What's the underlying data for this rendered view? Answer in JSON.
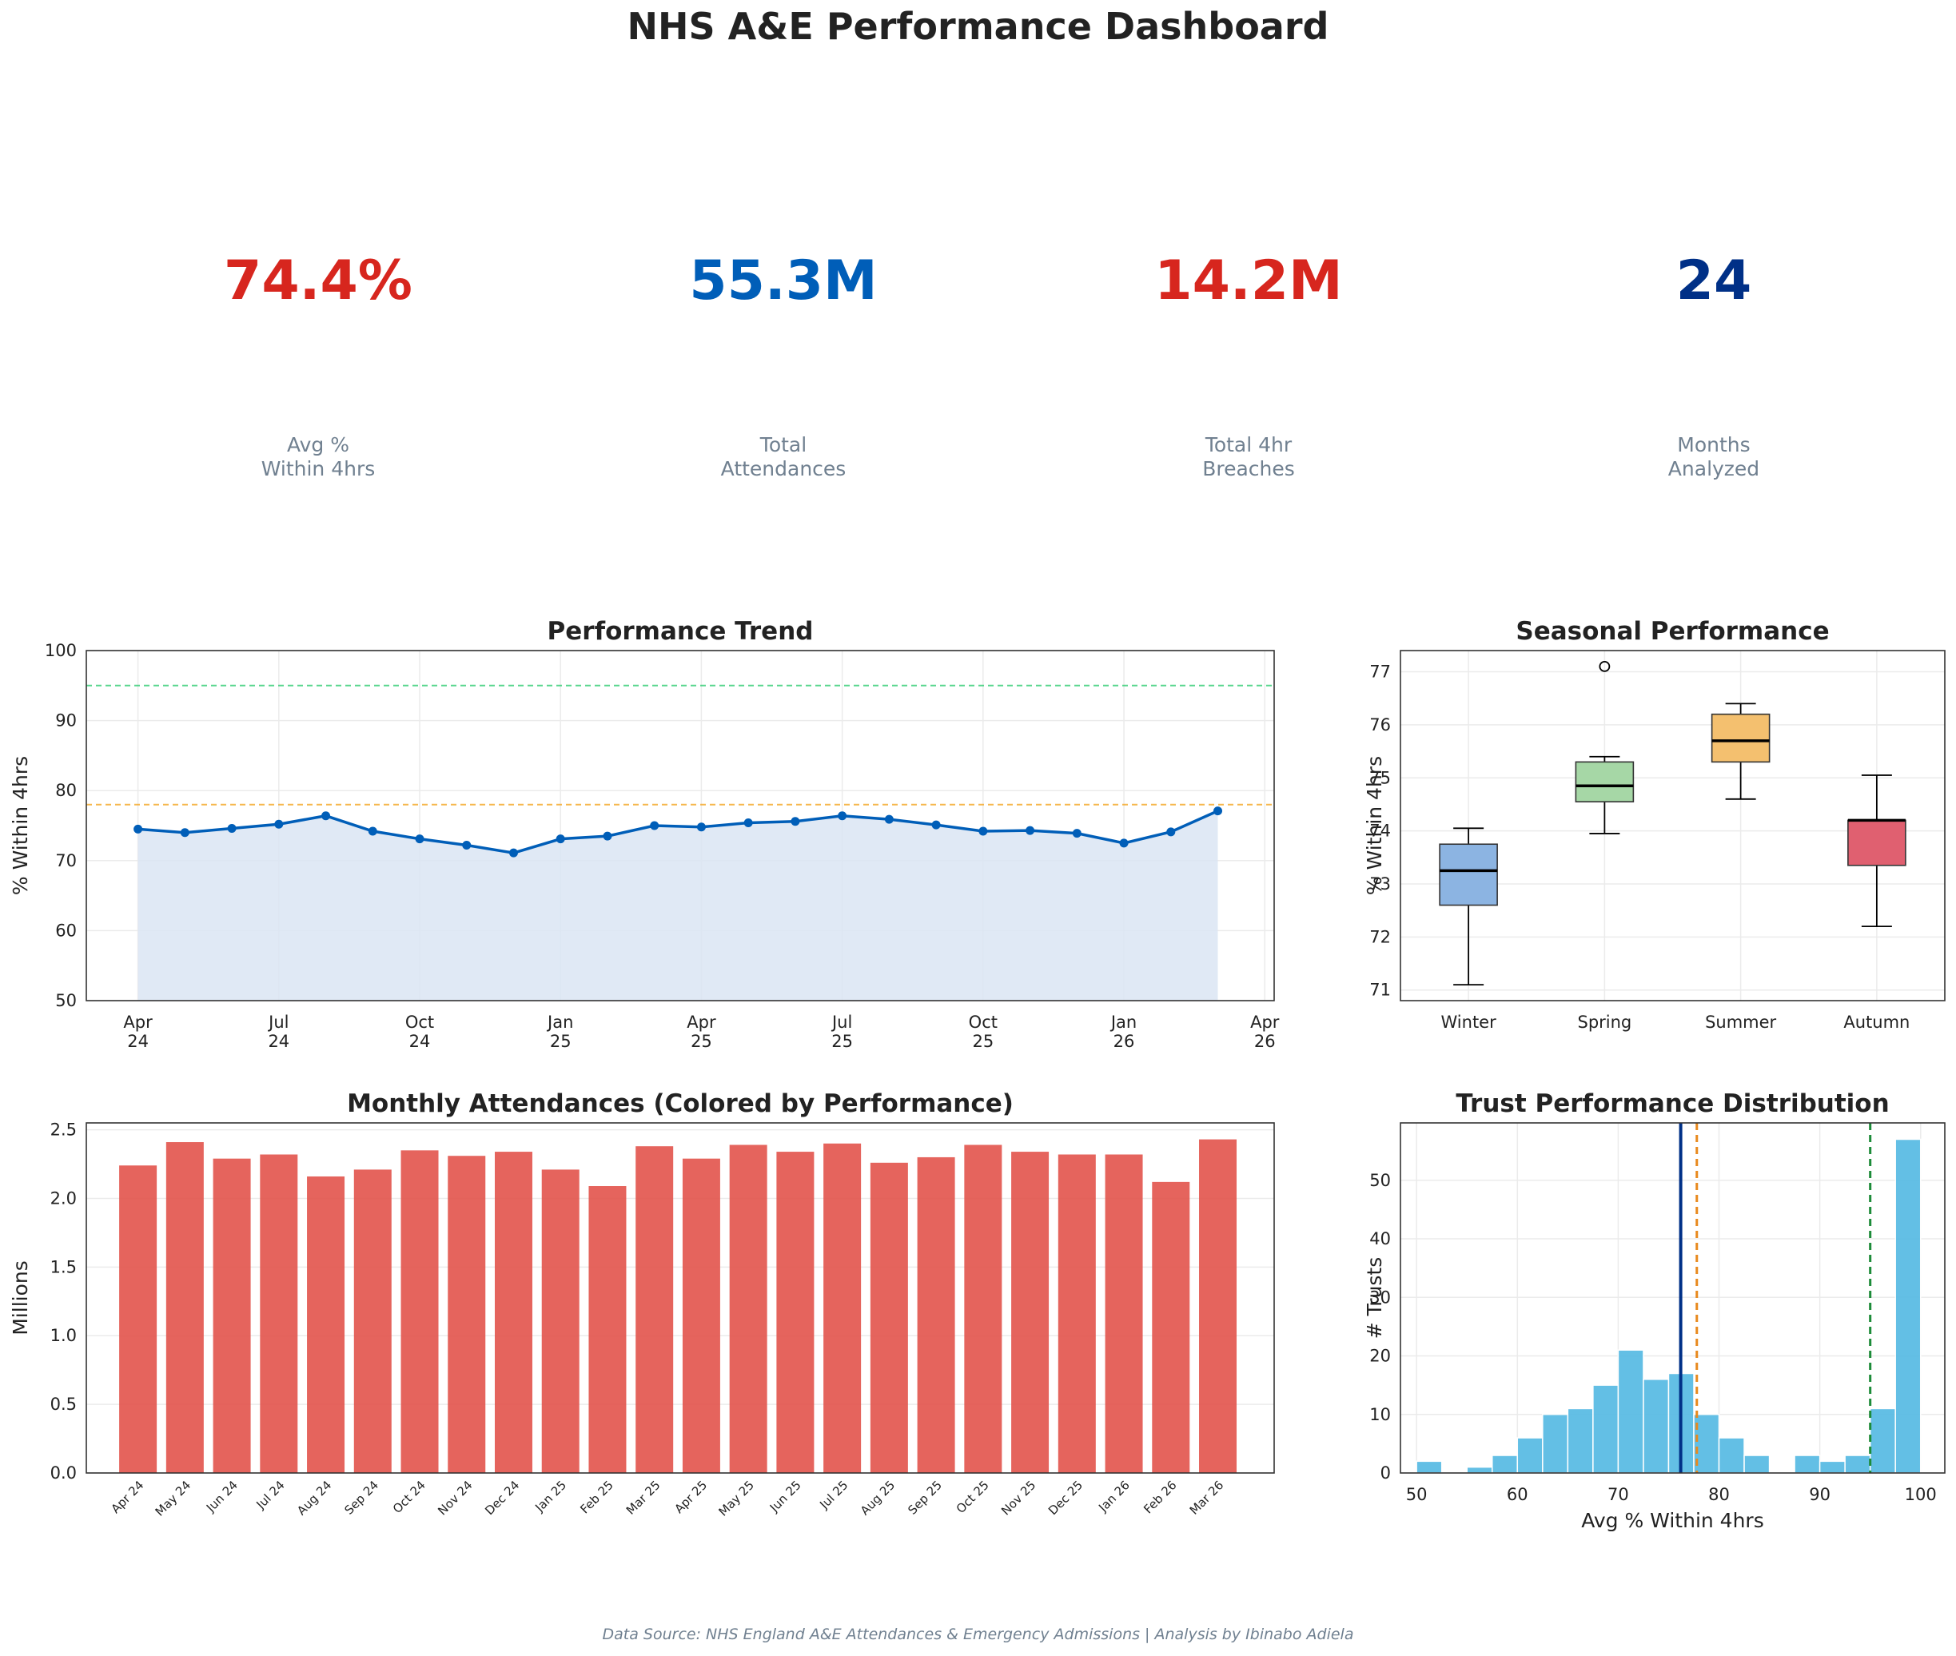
{
  "dashboard_title": "NHS A&E Performance Dashboard",
  "kpis": [
    {
      "value": "74.4%",
      "label": "Avg %\nWithin 4hrs",
      "color": "#d7261e"
    },
    {
      "value": "55.3M",
      "label": "Total\nAttendances",
      "color": "#005eb8"
    },
    {
      "value": "14.2M",
      "label": "Total 4hr\nBreaches",
      "color": "#d7261e"
    },
    {
      "value": "24",
      "label": "Months\nAnalyzed",
      "color": "#003087"
    }
  ],
  "footer": "Data Source: NHS England A&E Attendances & Emergency Admissions | Analysis by Ibinabo Adiela",
  "chart_data": [
    {
      "id": "trend",
      "type": "line",
      "title": "Performance Trend",
      "xlabel": "",
      "ylabel": "% Within 4hrs",
      "ylim": [
        50,
        100
      ],
      "yticks": [
        50,
        60,
        70,
        80,
        90,
        100
      ],
      "xticks": [
        "Apr\n24",
        "Jul\n24",
        "Oct\n24",
        "Jan\n25",
        "Apr\n25",
        "Jul\n25",
        "Oct\n25",
        "Jan\n26",
        "Apr\n26"
      ],
      "x": [
        "Apr 24",
        "May 24",
        "Jun 24",
        "Jul 24",
        "Aug 24",
        "Sep 24",
        "Oct 24",
        "Nov 24",
        "Dec 24",
        "Jan 25",
        "Feb 25",
        "Mar 25",
        "Apr 25",
        "May 25",
        "Jun 25",
        "Jul 25",
        "Aug 25",
        "Sep 25",
        "Oct 25",
        "Nov 25",
        "Dec 25",
        "Jan 26",
        "Feb 26",
        "Mar 26"
      ],
      "values": [
        74.5,
        74.0,
        74.6,
        75.2,
        76.4,
        74.2,
        73.1,
        72.2,
        71.1,
        73.1,
        73.5,
        75.0,
        74.8,
        75.4,
        75.6,
        76.4,
        75.9,
        75.1,
        74.2,
        74.3,
        73.9,
        72.5,
        74.1,
        77.1
      ],
      "reference_lines": [
        {
          "value": 95,
          "color": "#2ecc71"
        },
        {
          "value": 78,
          "color": "#f5a623"
        }
      ],
      "line_color": "#005eb8",
      "fill_color": "#dbe5f3",
      "grid": true
    },
    {
      "id": "seasonal",
      "type": "box",
      "title": "Seasonal Performance",
      "xlabel": "",
      "ylabel": "% Within 4hrs",
      "ylim": [
        70.8,
        77.4
      ],
      "yticks": [
        71,
        72,
        73,
        74,
        75,
        76,
        77
      ],
      "categories": [
        "Winter",
        "Spring",
        "Summer",
        "Autumn"
      ],
      "boxes": [
        {
          "whislo": 71.1,
          "q1": 72.6,
          "med": 73.25,
          "q3": 73.75,
          "whishi": 74.05,
          "fliers": [],
          "color": "#8cb4e2"
        },
        {
          "whislo": 73.95,
          "q1": 74.55,
          "med": 74.85,
          "q3": 75.3,
          "whishi": 75.4,
          "fliers": [
            77.1
          ],
          "color": "#a6d7a6"
        },
        {
          "whislo": 74.6,
          "q1": 75.3,
          "med": 75.7,
          "q3": 76.2,
          "whishi": 76.4,
          "fliers": [],
          "color": "#f4c06f"
        },
        {
          "whislo": 72.2,
          "q1": 73.35,
          "med": 74.2,
          "q3": 74.2,
          "whishi": 75.05,
          "fliers": [],
          "color": "#e06070"
        }
      ],
      "grid": true
    },
    {
      "id": "attendances",
      "type": "bar",
      "title": "Monthly Attendances (Colored by Performance)",
      "xlabel": "",
      "ylabel": "Millions",
      "ylim": [
        0,
        2.55
      ],
      "yticks": [
        0.0,
        0.5,
        1.0,
        1.5,
        2.0,
        2.5
      ],
      "ytick_labels": [
        "0.0",
        "0.5",
        "1.0",
        "1.5",
        "2.0",
        "2.5"
      ],
      "categories": [
        "Apr 24",
        "May 24",
        "Jun 24",
        "Jul 24",
        "Aug 24",
        "Sep 24",
        "Oct 24",
        "Nov 24",
        "Dec 24",
        "Jan 25",
        "Feb 25",
        "Mar 25",
        "Apr 25",
        "May 25",
        "Jun 25",
        "Jul 25",
        "Aug 25",
        "Sep 25",
        "Oct 25",
        "Nov 25",
        "Dec 25",
        "Jan 26",
        "Feb 26",
        "Mar 26"
      ],
      "values": [
        2.24,
        2.41,
        2.29,
        2.32,
        2.16,
        2.21,
        2.35,
        2.31,
        2.34,
        2.21,
        2.09,
        2.38,
        2.29,
        2.39,
        2.34,
        2.4,
        2.26,
        2.3,
        2.39,
        2.34,
        2.32,
        2.32,
        2.12,
        2.43
      ],
      "bar_color": "#e2534b",
      "grid": true
    },
    {
      "id": "distribution",
      "type": "histogram",
      "title": "Trust Performance Distribution",
      "xlabel": "Avg % Within 4hrs",
      "ylabel": "# Trusts",
      "xlim": [
        48.4,
        102.4
      ],
      "ylim": [
        0,
        59.8
      ],
      "xticks": [
        50,
        60,
        70,
        80,
        90,
        100
      ],
      "yticks": [
        0,
        10,
        20,
        30,
        40,
        50
      ],
      "bin_start": 50,
      "bin_width": 2.5,
      "counts": [
        2,
        0,
        1,
        3,
        6,
        10,
        11,
        15,
        21,
        16,
        17,
        10,
        6,
        3,
        0,
        3,
        2,
        3,
        11,
        57
      ],
      "bar_color": "#5bbce4",
      "vlines": [
        {
          "value": 76.2,
          "color": "#003087",
          "style": "solid"
        },
        {
          "value": 77.8,
          "color": "#e8891d",
          "style": "dashed"
        },
        {
          "value": 95,
          "color": "#1e8c3a",
          "style": "dashed"
        }
      ],
      "grid": true
    }
  ]
}
